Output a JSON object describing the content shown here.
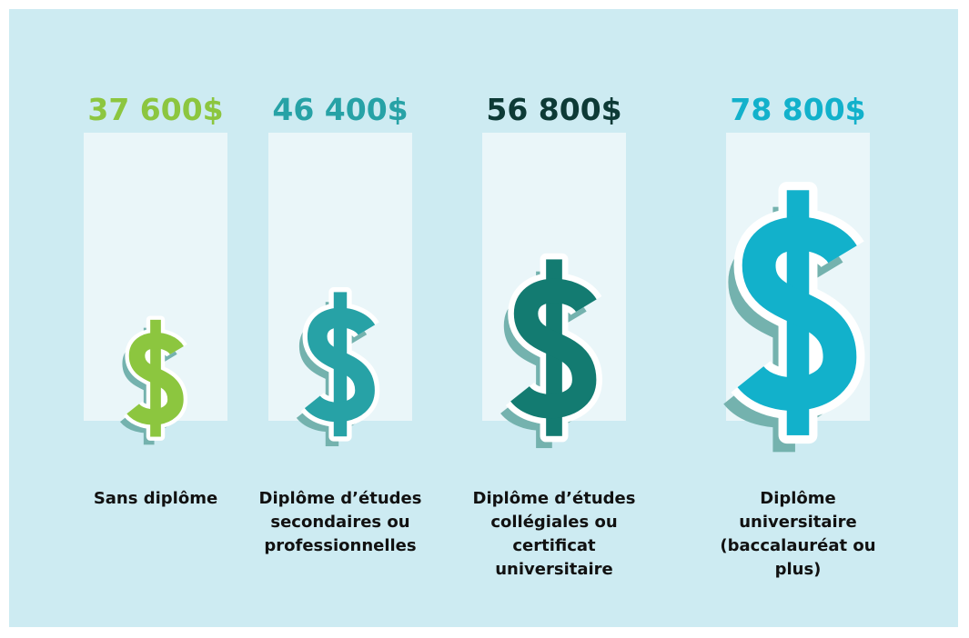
{
  "chart_data": {
    "type": "pictograph",
    "categories": [
      "Sans diplôme",
      "Diplôme d’études secondaires ou professionnelles",
      "Diplôme d’études collégiales ou certificat universitaire",
      "Diplôme universitaire (baccalauréat ou plus)"
    ],
    "values": [
      37600,
      46400,
      56800,
      78800
    ],
    "value_labels": [
      "37 600$",
      "46 400$",
      "56 800$",
      "78 800$"
    ],
    "colors": [
      "#8cc63f",
      "#27a2a6",
      "#137b71",
      "#12b1cb"
    ],
    "label_colors": [
      "#8cc63f",
      "#27a2a6",
      "#0d3a36",
      "#12b1cb"
    ]
  }
}
